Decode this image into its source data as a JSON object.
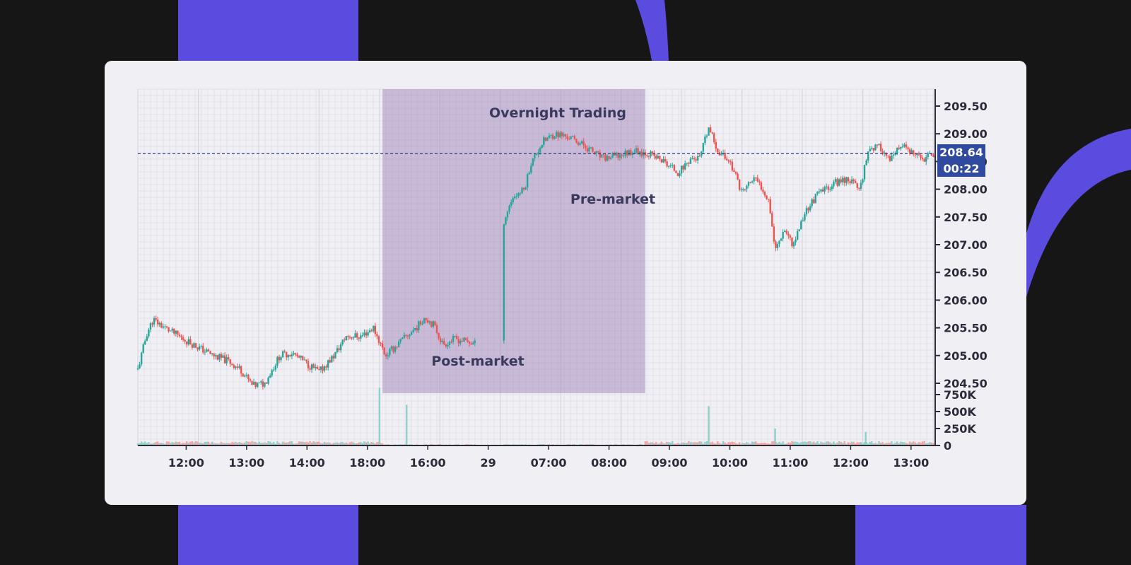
{
  "colors": {
    "background": "#161616",
    "accent": "#5b4ce0",
    "card": "#f0eff4",
    "up": "#26a69a",
    "down": "#ef5350",
    "highlight": "#9a79b3",
    "price_line": "#2b3a8f",
    "price_tag": "#2f4a9e"
  },
  "chart_data": {
    "type": "candlestick",
    "x_ticks": [
      "12:00",
      "13:00",
      "14:00",
      "18:00",
      "16:00",
      "29",
      "07:00",
      "08:00",
      "09:00",
      "10:00",
      "11:00",
      "12:00",
      "13:00"
    ],
    "price_ticks": [
      "209.50",
      "209.00",
      "208.50",
      "208.00",
      "207.50",
      "207.00",
      "206.50",
      "206.00",
      "205.50",
      "205.00",
      "204.50"
    ],
    "volume_ticks": [
      "750K",
      "500K",
      "250K",
      "0"
    ],
    "ylim": [
      204.5,
      209.5
    ],
    "volume_lim": [
      0,
      750000
    ],
    "price_series": [
      {
        "x": 0.0,
        "y": 204.75
      },
      {
        "x": 0.15,
        "y": 205.4
      },
      {
        "x": 0.25,
        "y": 205.65
      },
      {
        "x": 0.45,
        "y": 205.5
      },
      {
        "x": 0.75,
        "y": 205.3
      },
      {
        "x": 1.0,
        "y": 205.15
      },
      {
        "x": 1.25,
        "y": 205.0
      },
      {
        "x": 1.5,
        "y": 204.9
      },
      {
        "x": 1.7,
        "y": 204.75
      },
      {
        "x": 1.9,
        "y": 204.45
      },
      {
        "x": 2.1,
        "y": 204.5
      },
      {
        "x": 2.35,
        "y": 205.0
      },
      {
        "x": 2.55,
        "y": 205.05
      },
      {
        "x": 2.8,
        "y": 204.85
      },
      {
        "x": 3.0,
        "y": 204.7
      },
      {
        "x": 3.25,
        "y": 205.0
      },
      {
        "x": 3.45,
        "y": 205.35
      },
      {
        "x": 3.7,
        "y": 205.35
      },
      {
        "x": 3.9,
        "y": 205.5
      },
      {
        "x": 4.1,
        "y": 205.0
      },
      {
        "x": 4.3,
        "y": 205.2
      },
      {
        "x": 4.5,
        "y": 205.4
      },
      {
        "x": 4.65,
        "y": 205.55
      },
      {
        "x": 4.75,
        "y": 205.7
      },
      {
        "x": 4.9,
        "y": 205.55
      },
      {
        "x": 5.05,
        "y": 205.2
      },
      {
        "x": 5.25,
        "y": 205.3
      },
      {
        "x": 5.45,
        "y": 205.25
      },
      {
        "x": 5.6,
        "y": 205.2
      },
      {
        "x": 6.05,
        "y": 207.4
      },
      {
        "x": 6.2,
        "y": 207.85
      },
      {
        "x": 6.4,
        "y": 208.0
      },
      {
        "x": 6.5,
        "y": 208.45
      },
      {
        "x": 6.7,
        "y": 208.85
      },
      {
        "x": 6.9,
        "y": 209.0
      },
      {
        "x": 7.1,
        "y": 208.95
      },
      {
        "x": 7.3,
        "y": 208.85
      },
      {
        "x": 7.5,
        "y": 208.7
      },
      {
        "x": 7.7,
        "y": 208.55
      },
      {
        "x": 7.95,
        "y": 208.6
      },
      {
        "x": 8.2,
        "y": 208.7
      },
      {
        "x": 8.45,
        "y": 208.65
      },
      {
        "x": 8.7,
        "y": 208.5
      },
      {
        "x": 8.95,
        "y": 208.3
      },
      {
        "x": 9.15,
        "y": 208.55
      },
      {
        "x": 9.3,
        "y": 208.55
      },
      {
        "x": 9.45,
        "y": 209.1
      },
      {
        "x": 9.6,
        "y": 208.7
      },
      {
        "x": 9.8,
        "y": 208.5
      },
      {
        "x": 10.0,
        "y": 207.95
      },
      {
        "x": 10.2,
        "y": 208.2
      },
      {
        "x": 10.35,
        "y": 208.0
      },
      {
        "x": 10.45,
        "y": 207.8
      },
      {
        "x": 10.55,
        "y": 206.9
      },
      {
        "x": 10.7,
        "y": 207.3
      },
      {
        "x": 10.85,
        "y": 207.0
      },
      {
        "x": 11.05,
        "y": 207.6
      },
      {
        "x": 11.25,
        "y": 207.9
      },
      {
        "x": 11.5,
        "y": 208.1
      },
      {
        "x": 11.75,
        "y": 208.2
      },
      {
        "x": 11.95,
        "y": 208.0
      },
      {
        "x": 12.1,
        "y": 208.75
      },
      {
        "x": 12.3,
        "y": 208.75
      },
      {
        "x": 12.45,
        "y": 208.5
      },
      {
        "x": 12.65,
        "y": 208.8
      },
      {
        "x": 12.85,
        "y": 208.6
      },
      {
        "x": 13.0,
        "y": 208.55
      },
      {
        "x": 13.2,
        "y": 208.64
      }
    ],
    "gap_x": [
      5.6,
      6.05
    ],
    "volume_spikes": [
      {
        "x": 4.0,
        "value": 850000
      },
      {
        "x": 4.45,
        "value": 600000
      },
      {
        "x": 9.45,
        "value": 580000
      },
      {
        "x": 10.55,
        "value": 250000
      },
      {
        "x": 12.05,
        "value": 200000
      }
    ],
    "highlight_x": [
      4.05,
      8.4
    ],
    "last_price": "208.64",
    "countdown": "00:22",
    "annotations": {
      "overnight": "Overnight Trading",
      "premarket": "Pre-market",
      "postmarket": "Post-market"
    }
  }
}
